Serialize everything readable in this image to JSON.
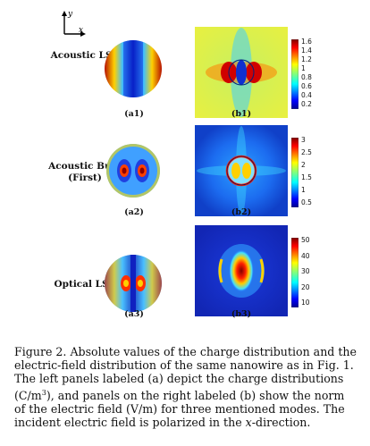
{
  "axes": {
    "y_label": "y",
    "x_label": "x"
  },
  "rows": [
    {
      "label": "Acoustic LSP",
      "left_panel": "(a1)",
      "right_panel": "(b1)",
      "colorbar_ticks": [
        "1.6",
        "1.4",
        "1.2",
        "1",
        "0.8",
        "0.6",
        "0.4",
        "0.2"
      ]
    },
    {
      "label": "Acoustic Bulk",
      "label_line2": "(First)",
      "left_panel": "(a2)",
      "right_panel": "(b2)",
      "colorbar_ticks": [
        "3",
        "2.5",
        "2",
        "1.5",
        "1",
        "0.5"
      ]
    },
    {
      "label": "Optical LSP",
      "left_panel": "(a3)",
      "right_panel": "(b3)",
      "colorbar_ticks": [
        "50",
        "40",
        "30",
        "20",
        "10"
      ]
    }
  ],
  "caption": {
    "lead": "Figure 2.",
    "text1": " Absolute values of the charge distribution and the electric-field distribution of the same nanowire as in Fig. 1. The left panels labeled (a) depict the charge distributions (C/m",
    "sup": "3",
    "text2": "), and panels on the right labeled (b) show the norm of the electric field (V/m) for three mentioned modes. The incident electric field is polarized in the ",
    "italic": "x",
    "text3": "-direction."
  }
}
